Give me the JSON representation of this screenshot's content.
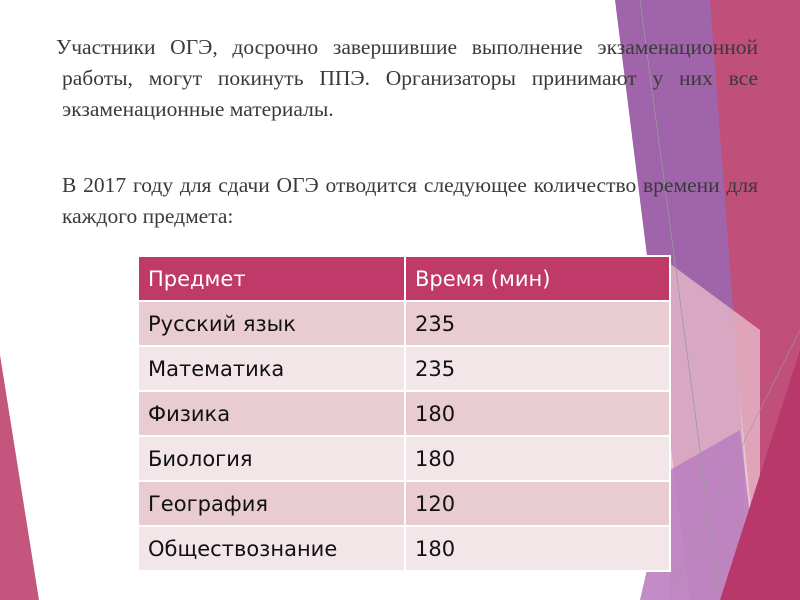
{
  "paragraphs": [
    "Участники ОГЭ, досрочно завершившие выполнение экзаменационной работы, могут покинуть ППЭ. Организаторы принимают у них все экзаменационные материалы.",
    "В 2017 году для сдачи ОГЭ отводится следующее количество времени для каждого предмета:"
  ],
  "table": {
    "headers": [
      "Предмет",
      "Время  (мин)"
    ],
    "rows": [
      [
        "Русский язык",
        "235"
      ],
      [
        "Математика",
        "235"
      ],
      [
        "Физика",
        "180"
      ],
      [
        "Биология",
        "180"
      ],
      [
        "География",
        "120"
      ],
      [
        "Обществознание",
        "180"
      ]
    ]
  },
  "colors": {
    "header": "#bf3a68",
    "row_odd": "#e8ccd2",
    "row_even": "#f3e6e9",
    "accent_purple": "#9d5fa8",
    "accent_pink": "#c0507a"
  }
}
